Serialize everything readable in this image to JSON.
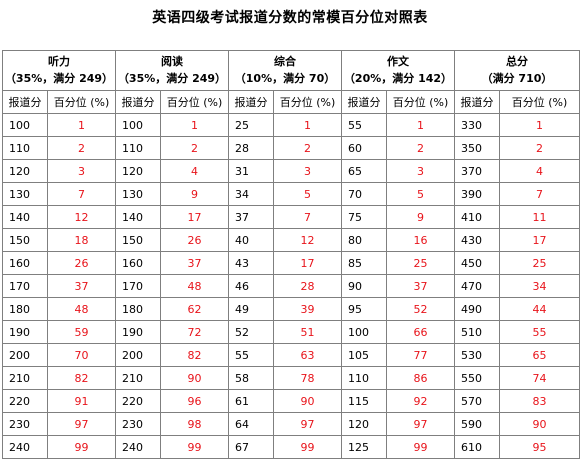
{
  "title": "英语四级考试报道分数的常模百分位对照表",
  "sub_headers": {
    "score": "报道分",
    "percentile": "百分位 (%)"
  },
  "colors": {
    "percentile_text": "#e8141b",
    "border": "#7f7f7f"
  },
  "sections": [
    {
      "name": "听力",
      "detail": "（35%，满分 249）"
    },
    {
      "name": "阅读",
      "detail": "（35%，满分 249）"
    },
    {
      "name": "综合",
      "detail": "（10%，满分 70）"
    },
    {
      "name": "作文",
      "detail": "（20%，满分 142）"
    },
    {
      "name": "总分",
      "detail": "（满分 710）"
    }
  ],
  "rows": [
    [
      "100",
      "1",
      "100",
      "1",
      "25",
      "1",
      "55",
      "1",
      "330",
      "1"
    ],
    [
      "110",
      "2",
      "110",
      "2",
      "28",
      "2",
      "60",
      "2",
      "350",
      "2"
    ],
    [
      "120",
      "3",
      "120",
      "4",
      "31",
      "3",
      "65",
      "3",
      "370",
      "4"
    ],
    [
      "130",
      "7",
      "130",
      "9",
      "34",
      "5",
      "70",
      "5",
      "390",
      "7"
    ],
    [
      "140",
      "12",
      "140",
      "17",
      "37",
      "7",
      "75",
      "9",
      "410",
      "11"
    ],
    [
      "150",
      "18",
      "150",
      "26",
      "40",
      "12",
      "80",
      "16",
      "430",
      "17"
    ],
    [
      "160",
      "26",
      "160",
      "37",
      "43",
      "17",
      "85",
      "25",
      "450",
      "25"
    ],
    [
      "170",
      "37",
      "170",
      "48",
      "46",
      "28",
      "90",
      "37",
      "470",
      "34"
    ],
    [
      "180",
      "48",
      "180",
      "62",
      "49",
      "39",
      "95",
      "52",
      "490",
      "44"
    ],
    [
      "190",
      "59",
      "190",
      "72",
      "52",
      "51",
      "100",
      "66",
      "510",
      "55"
    ],
    [
      "200",
      "70",
      "200",
      "82",
      "55",
      "63",
      "105",
      "77",
      "530",
      "65"
    ],
    [
      "210",
      "82",
      "210",
      "90",
      "58",
      "78",
      "110",
      "86",
      "550",
      "74"
    ],
    [
      "220",
      "91",
      "220",
      "96",
      "61",
      "90",
      "115",
      "92",
      "570",
      "83"
    ],
    [
      "230",
      "97",
      "230",
      "98",
      "64",
      "97",
      "120",
      "97",
      "590",
      "90"
    ],
    [
      "240",
      "99",
      "240",
      "99",
      "67",
      "99",
      "125",
      "99",
      "610",
      "95"
    ]
  ]
}
